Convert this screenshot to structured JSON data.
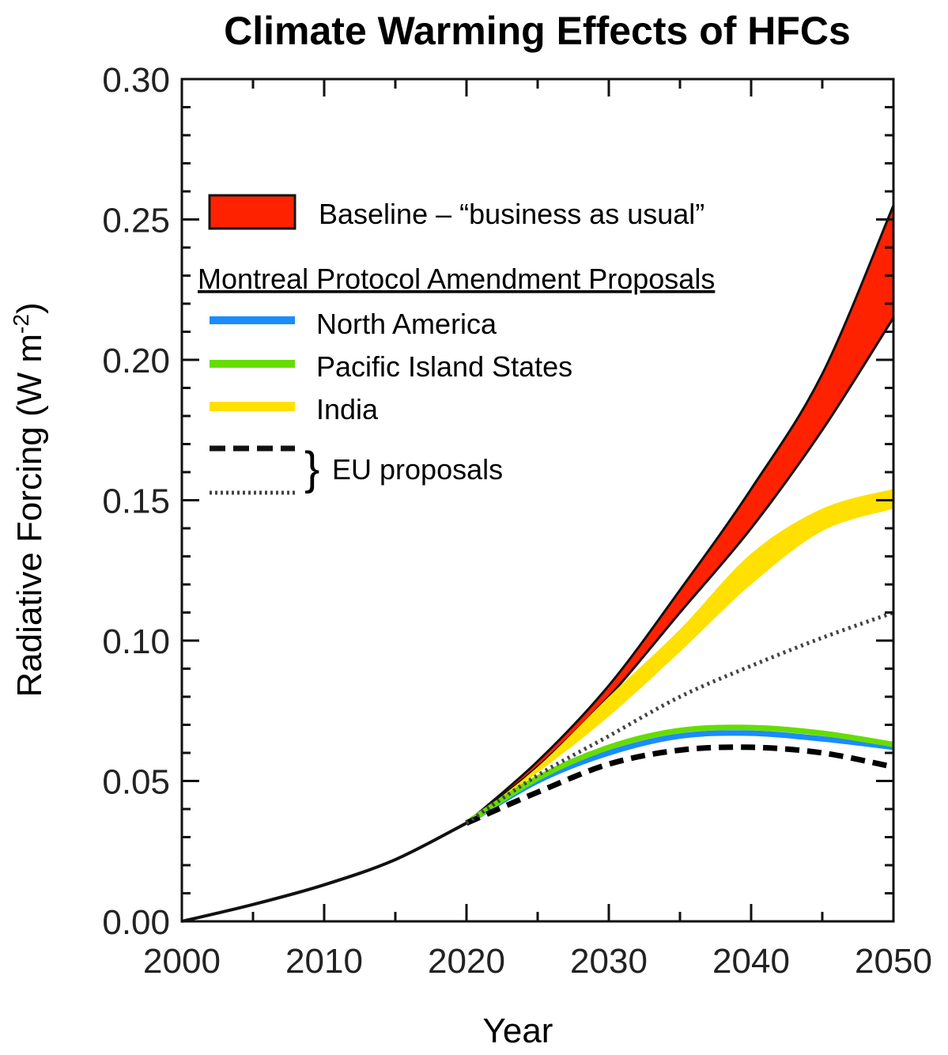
{
  "chart_data": {
    "type": "line",
    "title": "Climate Warming Effects of HFCs",
    "xlabel": "Year",
    "ylabel": "Radiative Forcing (W m",
    "ylabel_sup": "-2",
    "ylabel_close": ")",
    "xlim": [
      2000,
      2050
    ],
    "ylim": [
      0.0,
      0.3
    ],
    "x_ticks": [
      "2000",
      "2010",
      "2020",
      "2030",
      "2040",
      "2050"
    ],
    "y_ticks": [
      "0.00",
      "0.05",
      "0.10",
      "0.15",
      "0.20",
      "0.25",
      "0.30"
    ],
    "grid": false,
    "legend_placement": "top-left",
    "legend": {
      "baseline_label": "Baseline – “business as usual”",
      "group_heading": "Montreal Protocol Amendment Proposals",
      "eu_label": "EU proposals"
    },
    "history": {
      "name": "",
      "x": [
        2000,
        2005,
        2010,
        2015,
        2020
      ],
      "y": [
        0.0,
        0.006,
        0.013,
        0.022,
        0.035
      ]
    },
    "bands": [
      {
        "name": "Baseline – “business as usual”",
        "color": "#ff2200",
        "x": [
          2020,
          2025,
          2030,
          2035,
          2040,
          2045,
          2050
        ],
        "lower": [
          0.035,
          0.055,
          0.08,
          0.11,
          0.14,
          0.175,
          0.215
        ],
        "upper": [
          0.035,
          0.057,
          0.084,
          0.118,
          0.154,
          0.195,
          0.255
        ]
      },
      {
        "name": "India",
        "color": "#ffe000",
        "x": [
          2020,
          2025,
          2030,
          2035,
          2040,
          2045,
          2050
        ],
        "lower": [
          0.035,
          0.053,
          0.073,
          0.096,
          0.12,
          0.139,
          0.147
        ],
        "upper": [
          0.035,
          0.055,
          0.08,
          0.104,
          0.131,
          0.147,
          0.154
        ]
      }
    ],
    "series": [
      {
        "name": "North America",
        "color": "#1a8cff",
        "style": "solid",
        "x": [
          2020,
          2025,
          2030,
          2035,
          2040,
          2045,
          2050
        ],
        "y": [
          0.035,
          0.05,
          0.06,
          0.066,
          0.067,
          0.065,
          0.062
        ]
      },
      {
        "name": "Pacific Island States",
        "color": "#66dd00",
        "style": "solid",
        "x": [
          2020,
          2025,
          2030,
          2035,
          2040,
          2045,
          2050
        ],
        "y": [
          0.035,
          0.051,
          0.062,
          0.068,
          0.069,
          0.067,
          0.063
        ]
      },
      {
        "name": "",
        "color": "#000000",
        "style": "dashed",
        "x": [
          2020,
          2025,
          2030,
          2035,
          2040,
          2045,
          2050
        ],
        "y": [
          0.035,
          0.046,
          0.056,
          0.061,
          0.062,
          0.06,
          0.055
        ]
      },
      {
        "name": "",
        "color": "#444444",
        "style": "dotted",
        "x": [
          2020,
          2025,
          2030,
          2035,
          2040,
          2045,
          2050
        ],
        "y": [
          0.035,
          0.052,
          0.066,
          0.08,
          0.091,
          0.101,
          0.11
        ]
      }
    ]
  }
}
